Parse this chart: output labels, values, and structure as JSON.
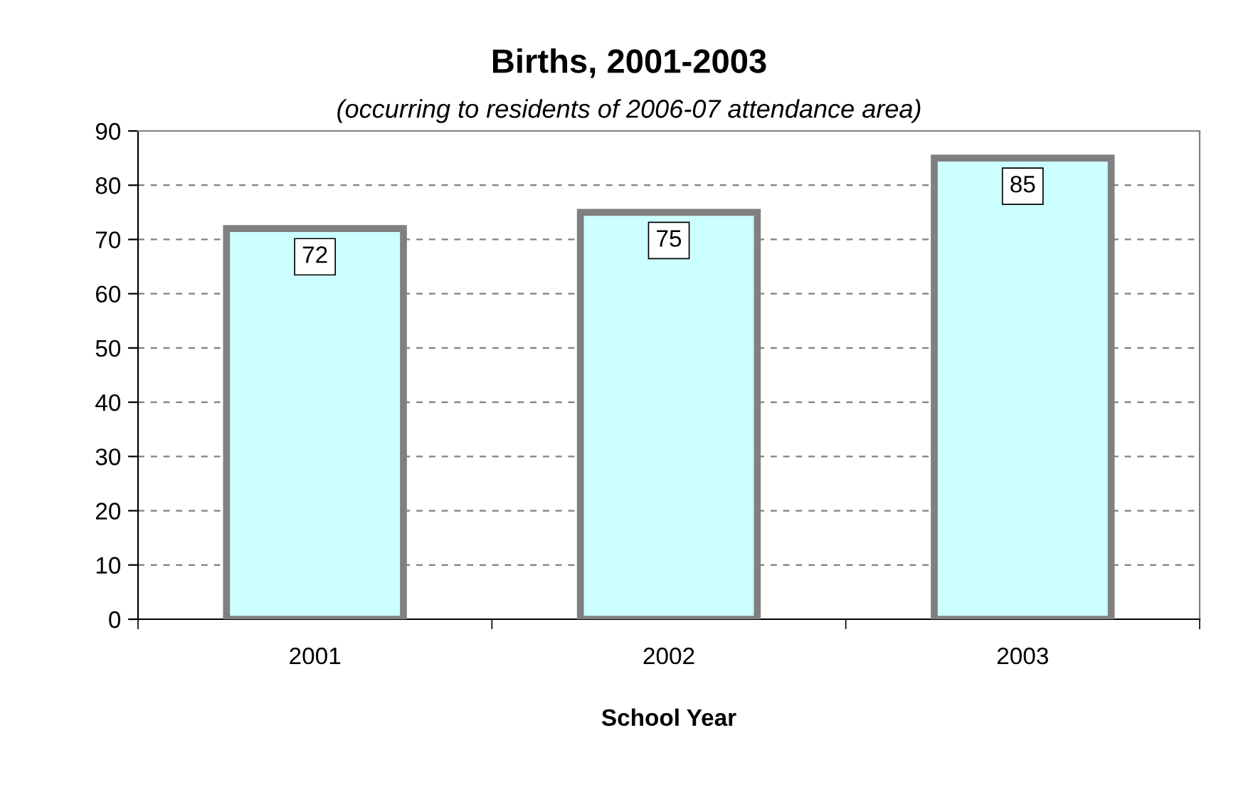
{
  "chart_data": {
    "type": "bar",
    "title": "Births, 2001-2003",
    "subtitle": "(occurring to residents of 2006-07 attendance area)",
    "xlabel": "School Year",
    "categories": [
      "2001",
      "2002",
      "2003"
    ],
    "values": [
      72,
      75,
      85
    ],
    "color": "#ccffff",
    "ylim": [
      0,
      90
    ],
    "yticks": [
      0,
      10,
      20,
      30,
      40,
      50,
      60,
      70,
      80,
      90
    ],
    "grid": "y",
    "data_labels": true,
    "legend": false
  }
}
